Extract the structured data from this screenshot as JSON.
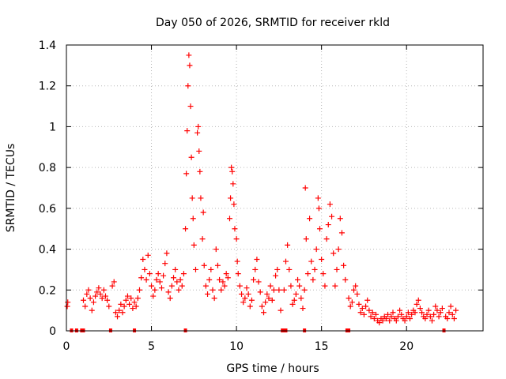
{
  "chart_data": {
    "type": "scatter",
    "title": "Day 050 of 2026, SRMTID for receiver rkld",
    "xlabel": "GPS time / hours",
    "ylabel": "SRMTID / TECUs",
    "xlim": [
      0,
      24.5
    ],
    "ylim": [
      0,
      1.4
    ],
    "grid": true,
    "marker": "+",
    "color": "#ff0000",
    "x_ticks": [
      0,
      5,
      10,
      15,
      20
    ],
    "x_tick_labels": [
      "0",
      "5",
      "10",
      "15",
      "20"
    ],
    "y_ticks": [
      0,
      0.2,
      0.4,
      0.6,
      0.8,
      1.0,
      1.2,
      1.4
    ],
    "y_tick_labels": [
      "0",
      "0.2",
      "0.4",
      "0.6",
      "0.8",
      "1",
      "1.2",
      "1.4"
    ],
    "series": [
      {
        "name": "SRMTID",
        "points": [
          [
            0.05,
            0.12
          ],
          [
            0.08,
            0.14
          ],
          [
            0.3,
            0.0
          ],
          [
            0.6,
            0.0
          ],
          [
            0.9,
            0.0
          ],
          [
            1.0,
            0.0
          ],
          [
            1.0,
            0.15
          ],
          [
            1.1,
            0.12
          ],
          [
            1.2,
            0.18
          ],
          [
            1.3,
            0.2
          ],
          [
            1.4,
            0.16
          ],
          [
            1.5,
            0.1
          ],
          [
            1.6,
            0.14
          ],
          [
            1.7,
            0.17
          ],
          [
            1.8,
            0.19
          ],
          [
            1.9,
            0.21
          ],
          [
            2.0,
            0.18
          ],
          [
            2.1,
            0.16
          ],
          [
            2.2,
            0.2
          ],
          [
            2.3,
            0.17
          ],
          [
            2.4,
            0.15
          ],
          [
            2.5,
            0.12
          ],
          [
            2.6,
            0.0
          ],
          [
            2.7,
            0.22
          ],
          [
            2.8,
            0.24
          ],
          [
            2.9,
            0.09
          ],
          [
            3.0,
            0.07
          ],
          [
            3.1,
            0.1
          ],
          [
            3.2,
            0.13
          ],
          [
            3.3,
            0.09
          ],
          [
            3.4,
            0.12
          ],
          [
            3.5,
            0.15
          ],
          [
            3.6,
            0.17
          ],
          [
            3.7,
            0.13
          ],
          [
            3.8,
            0.16
          ],
          [
            3.9,
            0.11
          ],
          [
            4.0,
            0.0
          ],
          [
            4.0,
            0.14
          ],
          [
            4.1,
            0.12
          ],
          [
            4.2,
            0.16
          ],
          [
            4.3,
            0.2
          ],
          [
            4.4,
            0.26
          ],
          [
            4.5,
            0.35
          ],
          [
            4.6,
            0.3
          ],
          [
            4.7,
            0.25
          ],
          [
            4.8,
            0.37
          ],
          [
            4.9,
            0.28
          ],
          [
            5.0,
            0.22
          ],
          [
            5.1,
            0.17
          ],
          [
            5.2,
            0.2
          ],
          [
            5.3,
            0.25
          ],
          [
            5.4,
            0.28
          ],
          [
            5.5,
            0.24
          ],
          [
            5.6,
            0.21
          ],
          [
            5.7,
            0.27
          ],
          [
            5.8,
            0.33
          ],
          [
            5.9,
            0.38
          ],
          [
            6.0,
            0.19
          ],
          [
            6.1,
            0.16
          ],
          [
            6.2,
            0.22
          ],
          [
            6.3,
            0.26
          ],
          [
            6.4,
            0.3
          ],
          [
            6.5,
            0.24
          ],
          [
            6.6,
            0.2
          ],
          [
            6.7,
            0.25
          ],
          [
            6.8,
            0.22
          ],
          [
            6.9,
            0.28
          ],
          [
            7.0,
            0.0
          ],
          [
            7.0,
            0.5
          ],
          [
            7.05,
            0.77
          ],
          [
            7.1,
            0.98
          ],
          [
            7.15,
            1.2
          ],
          [
            7.2,
            1.35
          ],
          [
            7.25,
            1.3
          ],
          [
            7.3,
            1.1
          ],
          [
            7.35,
            0.85
          ],
          [
            7.4,
            0.65
          ],
          [
            7.45,
            0.55
          ],
          [
            7.5,
            0.42
          ],
          [
            7.6,
            0.3
          ],
          [
            7.7,
            0.97
          ],
          [
            7.75,
            1.0
          ],
          [
            7.8,
            0.88
          ],
          [
            7.85,
            0.78
          ],
          [
            7.9,
            0.65
          ],
          [
            8.0,
            0.45
          ],
          [
            8.05,
            0.58
          ],
          [
            8.1,
            0.32
          ],
          [
            8.2,
            0.22
          ],
          [
            8.3,
            0.18
          ],
          [
            8.4,
            0.25
          ],
          [
            8.5,
            0.3
          ],
          [
            8.6,
            0.2
          ],
          [
            8.7,
            0.16
          ],
          [
            8.8,
            0.4
          ],
          [
            8.9,
            0.32
          ],
          [
            9.0,
            0.25
          ],
          [
            9.1,
            0.2
          ],
          [
            9.2,
            0.24
          ],
          [
            9.3,
            0.22
          ],
          [
            9.4,
            0.28
          ],
          [
            9.5,
            0.26
          ],
          [
            9.6,
            0.55
          ],
          [
            9.65,
            0.65
          ],
          [
            9.7,
            0.8
          ],
          [
            9.75,
            0.78
          ],
          [
            9.8,
            0.72
          ],
          [
            9.85,
            0.62
          ],
          [
            9.9,
            0.5
          ],
          [
            10.0,
            0.45
          ],
          [
            10.05,
            0.34
          ],
          [
            10.1,
            0.28
          ],
          [
            10.2,
            0.22
          ],
          [
            10.3,
            0.18
          ],
          [
            10.4,
            0.14
          ],
          [
            10.5,
            0.16
          ],
          [
            10.6,
            0.21
          ],
          [
            10.7,
            0.18
          ],
          [
            10.8,
            0.12
          ],
          [
            10.9,
            0.15
          ],
          [
            11.0,
            0.25
          ],
          [
            11.1,
            0.3
          ],
          [
            11.2,
            0.35
          ],
          [
            11.3,
            0.24
          ],
          [
            11.4,
            0.19
          ],
          [
            11.5,
            0.12
          ],
          [
            11.6,
            0.09
          ],
          [
            11.7,
            0.14
          ],
          [
            11.8,
            0.18
          ],
          [
            11.9,
            0.16
          ],
          [
            12.0,
            0.22
          ],
          [
            12.1,
            0.15
          ],
          [
            12.2,
            0.2
          ],
          [
            12.3,
            0.27
          ],
          [
            12.4,
            0.3
          ],
          [
            12.5,
            0.2
          ],
          [
            12.6,
            0.1
          ],
          [
            12.7,
            0.0
          ],
          [
            12.8,
            0.0
          ],
          [
            12.9,
            0.0
          ],
          [
            12.8,
            0.2
          ],
          [
            12.9,
            0.34
          ],
          [
            13.0,
            0.42
          ],
          [
            13.1,
            0.3
          ],
          [
            13.2,
            0.22
          ],
          [
            13.3,
            0.13
          ],
          [
            13.4,
            0.15
          ],
          [
            13.5,
            0.18
          ],
          [
            13.6,
            0.25
          ],
          [
            13.7,
            0.22
          ],
          [
            13.8,
            0.16
          ],
          [
            13.9,
            0.11
          ],
          [
            14.0,
            0.0
          ],
          [
            14.0,
            0.2
          ],
          [
            14.05,
            0.7
          ],
          [
            14.1,
            0.45
          ],
          [
            14.2,
            0.28
          ],
          [
            14.3,
            0.55
          ],
          [
            14.4,
            0.34
          ],
          [
            14.5,
            0.25
          ],
          [
            14.6,
            0.3
          ],
          [
            14.7,
            0.4
          ],
          [
            14.8,
            0.65
          ],
          [
            14.85,
            0.6
          ],
          [
            14.9,
            0.5
          ],
          [
            15.0,
            0.35
          ],
          [
            15.1,
            0.28
          ],
          [
            15.2,
            0.22
          ],
          [
            15.3,
            0.45
          ],
          [
            15.4,
            0.52
          ],
          [
            15.5,
            0.62
          ],
          [
            15.6,
            0.56
          ],
          [
            15.7,
            0.38
          ],
          [
            15.8,
            0.22
          ],
          [
            15.9,
            0.3
          ],
          [
            16.0,
            0.4
          ],
          [
            16.1,
            0.55
          ],
          [
            16.2,
            0.48
          ],
          [
            16.3,
            0.32
          ],
          [
            16.4,
            0.25
          ],
          [
            16.5,
            0.0
          ],
          [
            16.6,
            0.0
          ],
          [
            16.6,
            0.16
          ],
          [
            16.7,
            0.12
          ],
          [
            16.8,
            0.14
          ],
          [
            16.9,
            0.2
          ],
          [
            17.0,
            0.22
          ],
          [
            17.1,
            0.18
          ],
          [
            17.2,
            0.13
          ],
          [
            17.3,
            0.09
          ],
          [
            17.4,
            0.11
          ],
          [
            17.5,
            0.08
          ],
          [
            17.6,
            0.12
          ],
          [
            17.7,
            0.15
          ],
          [
            17.8,
            0.1
          ],
          [
            17.9,
            0.07
          ],
          [
            18.0,
            0.09
          ],
          [
            18.1,
            0.06
          ],
          [
            18.2,
            0.08
          ],
          [
            18.3,
            0.05
          ],
          [
            18.4,
            0.04
          ],
          [
            18.5,
            0.06
          ],
          [
            18.6,
            0.05
          ],
          [
            18.7,
            0.07
          ],
          [
            18.8,
            0.06
          ],
          [
            18.9,
            0.08
          ],
          [
            19.0,
            0.05
          ],
          [
            19.1,
            0.07
          ],
          [
            19.2,
            0.09
          ],
          [
            19.3,
            0.06
          ],
          [
            19.4,
            0.05
          ],
          [
            19.5,
            0.07
          ],
          [
            19.6,
            0.1
          ],
          [
            19.7,
            0.08
          ],
          [
            19.8,
            0.06
          ],
          [
            19.9,
            0.05
          ],
          [
            20.0,
            0.07
          ],
          [
            20.1,
            0.09
          ],
          [
            20.2,
            0.06
          ],
          [
            20.3,
            0.08
          ],
          [
            20.4,
            0.1
          ],
          [
            20.5,
            0.09
          ],
          [
            20.6,
            0.13
          ],
          [
            20.7,
            0.15
          ],
          [
            20.8,
            0.11
          ],
          [
            20.9,
            0.09
          ],
          [
            21.0,
            0.07
          ],
          [
            21.1,
            0.06
          ],
          [
            21.2,
            0.08
          ],
          [
            21.3,
            0.1
          ],
          [
            21.4,
            0.07
          ],
          [
            21.5,
            0.05
          ],
          [
            21.6,
            0.08
          ],
          [
            21.7,
            0.12
          ],
          [
            21.8,
            0.1
          ],
          [
            21.9,
            0.07
          ],
          [
            22.0,
            0.09
          ],
          [
            22.1,
            0.11
          ],
          [
            22.2,
            0.0
          ],
          [
            22.3,
            0.07
          ],
          [
            22.4,
            0.06
          ],
          [
            22.5,
            0.09
          ],
          [
            22.6,
            0.12
          ],
          [
            22.7,
            0.08
          ],
          [
            22.8,
            0.06
          ],
          [
            22.9,
            0.1
          ]
        ]
      }
    ]
  }
}
